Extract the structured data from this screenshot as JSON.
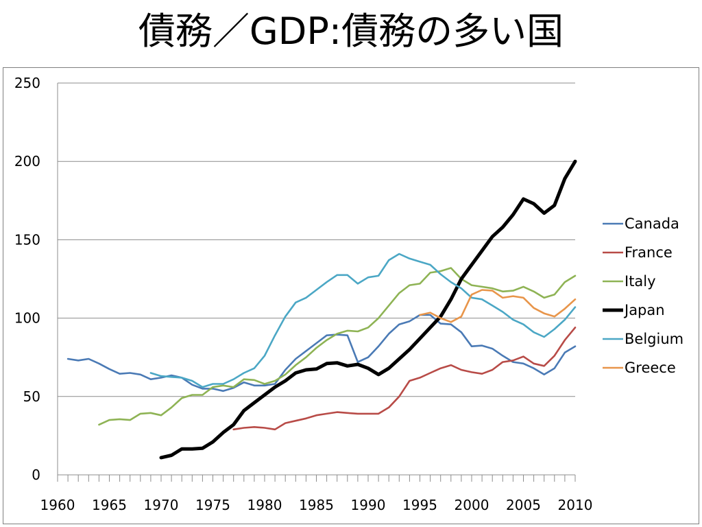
{
  "slide": {
    "title": "債務／GDP:債務の多い国"
  },
  "chart_data": {
    "type": "line",
    "title": "",
    "xlabel": "",
    "ylabel": "",
    "xlim": [
      1960,
      2010
    ],
    "ylim": [
      0,
      250
    ],
    "yticks": [
      0,
      50,
      100,
      150,
      200,
      250
    ],
    "xticks": [
      1960,
      1965,
      1970,
      1975,
      1980,
      1985,
      1990,
      1995,
      2000,
      2005,
      2010
    ],
    "grid": "horizontal",
    "legend_position": "right",
    "series": [
      {
        "name": "Canada",
        "color": "#4a7ab5",
        "x": [
          1961,
          1962,
          1963,
          1964,
          1965,
          1966,
          1967,
          1968,
          1969,
          1970,
          1971,
          1972,
          1973,
          1974,
          1975,
          1976,
          1977,
          1978,
          1979,
          1980,
          1981,
          1982,
          1983,
          1984,
          1985,
          1986,
          1987,
          1988,
          1989,
          1990,
          1991,
          1992,
          1993,
          1994,
          1995,
          1996,
          1997,
          1998,
          1999,
          2000,
          2001,
          2002,
          2003,
          2004,
          2005,
          2006,
          2007,
          2008,
          2009,
          2010
        ],
        "y": [
          74,
          73,
          74,
          71,
          67.5,
          64.5,
          65,
          64,
          61,
          62,
          63.5,
          62,
          57.5,
          55,
          55,
          53.5,
          55.5,
          59,
          57,
          57,
          58,
          67,
          74,
          79,
          84,
          89,
          89.5,
          89,
          72,
          75,
          82,
          90,
          96,
          98,
          102,
          102,
          96.5,
          96,
          91,
          82,
          82.5,
          80.5,
          76,
          72,
          71,
          68,
          64,
          68,
          78,
          82
        ]
      },
      {
        "name": "France",
        "color": "#b84b47",
        "x": [
          1977,
          1978,
          1979,
          1980,
          1981,
          1982,
          1983,
          1984,
          1985,
          1986,
          1987,
          1988,
          1989,
          1990,
          1991,
          1992,
          1993,
          1994,
          1995,
          1996,
          1997,
          1998,
          1999,
          2000,
          2001,
          2002,
          2003,
          2004,
          2005,
          2006,
          2007,
          2008,
          2009,
          2010
        ],
        "y": [
          29,
          30,
          30.5,
          30,
          29,
          33,
          34.5,
          36,
          38,
          39,
          40,
          39.5,
          39,
          39,
          39,
          43,
          50,
          60,
          62,
          65,
          68,
          70,
          67,
          65.5,
          64.5,
          67,
          72,
          73,
          75.5,
          71,
          69.5,
          76,
          86,
          94
        ]
      },
      {
        "name": "Italy",
        "color": "#8eb354",
        "x": [
          1964,
          1965,
          1966,
          1967,
          1968,
          1969,
          1970,
          1971,
          1972,
          1973,
          1974,
          1975,
          1976,
          1977,
          1978,
          1979,
          1980,
          1981,
          1982,
          1983,
          1984,
          1985,
          1986,
          1987,
          1988,
          1989,
          1990,
          1991,
          1992,
          1993,
          1994,
          1995,
          1996,
          1997,
          1998,
          1999,
          2000,
          2001,
          2002,
          2003,
          2004,
          2005,
          2006,
          2007,
          2008,
          2009,
          2010
        ],
        "y": [
          32,
          35,
          35.5,
          35,
          39,
          39.5,
          38,
          43,
          49,
          51,
          51,
          56,
          57,
          56,
          61,
          60.5,
          58,
          60,
          64,
          70,
          75,
          81,
          86,
          90,
          92,
          91.5,
          94,
          100,
          108,
          116,
          121,
          122,
          129,
          130,
          132,
          125,
          121,
          120,
          119,
          117,
          117.5,
          120,
          117,
          113,
          115,
          123,
          127
        ]
      },
      {
        "name": "Japan",
        "color": "#000000",
        "x": [
          1970,
          1971,
          1972,
          1973,
          1974,
          1975,
          1976,
          1977,
          1978,
          1979,
          1980,
          1981,
          1982,
          1983,
          1984,
          1985,
          1986,
          1987,
          1988,
          1989,
          1990,
          1991,
          1992,
          1993,
          1994,
          1995,
          1996,
          1997,
          1998,
          1999,
          2000,
          2001,
          2002,
          2003,
          2004,
          2005,
          2006,
          2007,
          2008,
          2009,
          2010
        ],
        "y": [
          11,
          12.5,
          16.5,
          16.5,
          17,
          21,
          27,
          32,
          41,
          46,
          51,
          56,
          60,
          65,
          67,
          67.5,
          71,
          71.5,
          69.5,
          70.5,
          68,
          64,
          68,
          74,
          80,
          87,
          94,
          101,
          112,
          125,
          134,
          143,
          152,
          158,
          166,
          176,
          173,
          167,
          172,
          189,
          200
        ]
      },
      {
        "name": "Belgium",
        "color": "#4ba7c5",
        "x": [
          1969,
          1970,
          1971,
          1972,
          1973,
          1974,
          1975,
          1976,
          1977,
          1978,
          1979,
          1980,
          1981,
          1982,
          1983,
          1984,
          1985,
          1986,
          1987,
          1988,
          1989,
          1990,
          1991,
          1992,
          1993,
          1994,
          1995,
          1996,
          1997,
          1998,
          1999,
          2000,
          2001,
          2002,
          2003,
          2004,
          2005,
          2006,
          2007,
          2008,
          2009,
          2010
        ],
        "y": [
          65,
          63,
          62.5,
          62,
          60,
          56,
          58,
          58,
          61,
          65,
          68,
          76,
          89,
          101,
          110,
          113,
          118,
          123,
          127.5,
          127.5,
          122,
          126,
          127,
          137,
          141,
          138,
          136,
          134,
          128,
          123,
          119,
          113,
          112,
          108,
          104,
          99,
          96,
          91,
          88,
          93,
          99,
          107
        ]
      },
      {
        "name": "Greece",
        "color": "#e8954a",
        "x": [
          1995,
          1996,
          1997,
          1998,
          1999,
          2000,
          2001,
          2002,
          2003,
          2004,
          2005,
          2006,
          2007,
          2008,
          2009,
          2010
        ],
        "y": [
          102,
          103.5,
          100,
          97.5,
          101,
          115,
          118,
          117.5,
          113,
          114,
          113,
          106.5,
          103,
          101,
          106,
          112
        ]
      }
    ]
  }
}
